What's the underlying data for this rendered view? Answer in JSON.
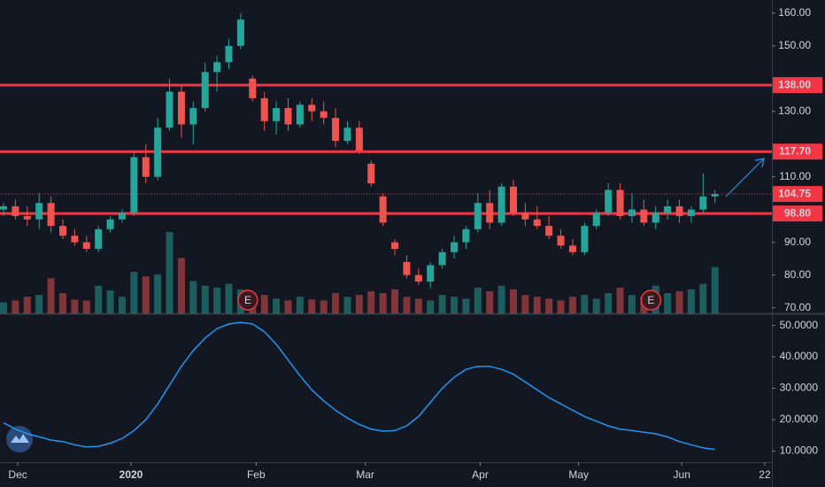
{
  "chart_data": {
    "type": "candlestick",
    "xlim": [
      -0.3,
      64.8
    ],
    "xticks": [
      {
        "value": 1.2,
        "label": "Dec"
      },
      {
        "value": 10.75,
        "label": "2020"
      },
      {
        "value": 21.3,
        "label": "Feb"
      },
      {
        "value": 30.5,
        "label": "Mar"
      },
      {
        "value": 40.2,
        "label": "Apr"
      },
      {
        "value": 48.5,
        "label": "May"
      },
      {
        "value": 57.2,
        "label": "Jun"
      },
      {
        "value": 64.2,
        "label": "22"
      }
    ],
    "ylim": [
      68,
      164
    ],
    "yticks": [
      {
        "value": 70,
        "label": "70.00"
      },
      {
        "value": 80,
        "label": "80.00"
      },
      {
        "value": 90,
        "label": "90.00"
      },
      {
        "value": 110,
        "label": "110.00"
      },
      {
        "value": 130,
        "label": "130.00"
      },
      {
        "value": 150,
        "label": "150.00"
      },
      {
        "value": 160,
        "label": "160.00"
      }
    ],
    "up_color": "#26a69a",
    "down_color": "#ef5350",
    "candles": [
      [
        100,
        102,
        98,
        101
      ],
      [
        101,
        103,
        97,
        98
      ],
      [
        98,
        101,
        95,
        97
      ],
      [
        97,
        105,
        94,
        102
      ],
      [
        102,
        104,
        93,
        95
      ],
      [
        95,
        97,
        91,
        92
      ],
      [
        92,
        94,
        89,
        90
      ],
      [
        90,
        92,
        87,
        88
      ],
      [
        88,
        95,
        87,
        94
      ],
      [
        94,
        98,
        93,
        97
      ],
      [
        97,
        100,
        96,
        99
      ],
      [
        99,
        118,
        98,
        116
      ],
      [
        116,
        120,
        108,
        110
      ],
      [
        110,
        128,
        109,
        125
      ],
      [
        125,
        140,
        124,
        136
      ],
      [
        136,
        138,
        122,
        126
      ],
      [
        126,
        133,
        120,
        131
      ],
      [
        131,
        145,
        130,
        142
      ],
      [
        142,
        147,
        136,
        145
      ],
      [
        145,
        152,
        143,
        150
      ],
      [
        150,
        160,
        149,
        158
      ],
      [
        140,
        141,
        133,
        134
      ],
      [
        134,
        136,
        124,
        127
      ],
      [
        127,
        133,
        123,
        131
      ],
      [
        131,
        134,
        124,
        126
      ],
      [
        126,
        133,
        125,
        132
      ],
      [
        132,
        134,
        127,
        130
      ],
      [
        130,
        133,
        126,
        128
      ],
      [
        128,
        131,
        119,
        121
      ],
      [
        121,
        127,
        120,
        125
      ],
      [
        125,
        127,
        117,
        118
      ],
      [
        114,
        115,
        107,
        108
      ],
      [
        104,
        105,
        95,
        96
      ],
      [
        90,
        91,
        86,
        88
      ],
      [
        84,
        86,
        79,
        80
      ],
      [
        80,
        82,
        77,
        78
      ],
      [
        78,
        84,
        76,
        83
      ],
      [
        83,
        88,
        82,
        87
      ],
      [
        87,
        92,
        85,
        90
      ],
      [
        90,
        95,
        88,
        94
      ],
      [
        94,
        105,
        93,
        102
      ],
      [
        102,
        106,
        94,
        96
      ],
      [
        96,
        108,
        95,
        107
      ],
      [
        107,
        109,
        98,
        99
      ],
      [
        99,
        102,
        95,
        97
      ],
      [
        97,
        101,
        94,
        95
      ],
      [
        95,
        98,
        91,
        92
      ],
      [
        92,
        94,
        88,
        89
      ],
      [
        89,
        91,
        86,
        87
      ],
      [
        87,
        96,
        86,
        95
      ],
      [
        95,
        100,
        94,
        99
      ],
      [
        99,
        108,
        98,
        106
      ],
      [
        106,
        108,
        97,
        98
      ],
      [
        98,
        105,
        96,
        100
      ],
      [
        100,
        103,
        95,
        96
      ],
      [
        96,
        101,
        94,
        99
      ],
      [
        99,
        103,
        97,
        101
      ],
      [
        101,
        103,
        96,
        98
      ],
      [
        98,
        101,
        96,
        100
      ],
      [
        100,
        111,
        99,
        104
      ],
      [
        104,
        106,
        102,
        104.75
      ]
    ],
    "volumes": [
      12,
      14,
      18,
      20,
      38,
      22,
      15,
      14,
      30,
      25,
      18,
      45,
      40,
      42,
      88,
      60,
      35,
      30,
      28,
      32,
      26,
      22,
      20,
      16,
      14,
      18,
      15,
      14,
      22,
      18,
      20,
      24,
      22,
      26,
      18,
      16,
      14,
      20,
      18,
      16,
      28,
      24,
      30,
      26,
      20,
      18,
      16,
      14,
      18,
      20,
      16,
      22,
      28,
      20,
      18,
      30,
      22,
      24,
      26,
      32,
      50
    ],
    "level_color": "#f23645",
    "levels": [
      {
        "value": 138,
        "label": "138.00"
      },
      {
        "value": 117.7,
        "label": "117.70"
      },
      {
        "value": 98.8,
        "label": "98.80"
      }
    ],
    "last_price": {
      "value": 104.75,
      "label": "104.75"
    },
    "earnings": [
      {
        "x": 20.6,
        "label": "E"
      },
      {
        "x": 54.6,
        "label": "E"
      }
    ],
    "indicator": {
      "color": "#2196f3",
      "ylim": [
        7,
        53
      ],
      "yticks": [
        {
          "value": 10,
          "label": "10.0000"
        },
        {
          "value": 20,
          "label": "20.0000"
        },
        {
          "value": 30,
          "label": "30.0000"
        },
        {
          "value": 40,
          "label": "40.0000"
        },
        {
          "value": 50,
          "label": "50.0000"
        }
      ],
      "values": [
        19,
        17,
        15.5,
        14.5,
        13.5,
        13,
        12,
        11.3,
        11.5,
        12.5,
        14,
        16.5,
        20,
        25,
        31,
        37,
        42,
        46,
        49,
        50.5,
        51,
        50.5,
        48,
        44,
        39,
        34,
        29.5,
        26,
        23,
        20.5,
        18.5,
        17,
        16.3,
        16.5,
        18,
        21,
        25.5,
        30,
        33.5,
        36,
        37,
        37,
        36,
        34.5,
        32,
        29.5,
        27,
        25,
        23,
        21,
        19.5,
        18,
        17,
        16.5,
        16,
        15.5,
        14.5,
        13,
        12,
        11,
        10.5
      ]
    }
  }
}
